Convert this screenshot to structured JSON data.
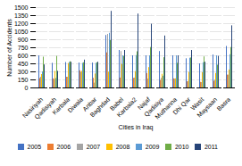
{
  "chart_data": {
    "type": "bar",
    "xlabel": "Cities in Iraq",
    "ylabel": "Number of Accidents",
    "categories": [
      "Nasiriyah",
      "Qadisiyah",
      "Karbala",
      "Diwala",
      "Anbar",
      "Baghdad",
      "Babel",
      "Karbala2",
      "Najaf",
      "Qadisiya",
      "Muthanna",
      "Dhi Qar",
      "Wasit",
      "Maysaan",
      "Basra"
    ],
    "series": [
      {
        "name": "2005",
        "color": "#4472C4",
        "values": [
          600,
          460,
          475,
          465,
          465,
          980,
          700,
          600,
          600,
          680,
          600,
          545,
          450,
          615,
          775
        ]
      },
      {
        "name": "2006",
        "color": "#ED7D31",
        "values": [
          175,
          170,
          200,
          320,
          180,
          655,
          185,
          180,
          270,
          140,
          170,
          115,
          105,
          125,
          240
        ]
      },
      {
        "name": "2007",
        "color": "#A5A5A5",
        "values": [
          200,
          160,
          200,
          290,
          90,
          1000,
          680,
          185,
          165,
          180,
          165,
          120,
          100,
          145,
          240
        ]
      },
      {
        "name": "2008",
        "color": "#FFC000",
        "values": [
          250,
          310,
          455,
          310,
          260,
          295,
          440,
          305,
          380,
          255,
          170,
          290,
          285,
          270,
          335
        ]
      },
      {
        "name": "2009",
        "color": "#5B9BD5",
        "values": [
          300,
          175,
          475,
          460,
          460,
          1020,
          600,
          605,
          600,
          220,
          600,
          555,
          470,
          600,
          620
        ]
      },
      {
        "name": "2010",
        "color": "#70AD47",
        "values": [
          575,
          590,
          490,
          470,
          470,
          885,
          590,
          675,
          755,
          565,
          460,
          560,
          580,
          425,
          755
        ]
      },
      {
        "name": "2011",
        "color": "#264478",
        "values": [
          430,
          310,
          480,
          520,
          480,
          1430,
          700,
          1380,
          1190,
          970,
          600,
          700,
          480,
          590,
          1160
        ]
      }
    ],
    "ylim": [
      0,
      1500
    ],
    "yticks": [
      0,
      150,
      300,
      450,
      600,
      750,
      900,
      1050,
      1200,
      1350,
      1500
    ],
    "grid": true,
    "legend": "bottom"
  }
}
